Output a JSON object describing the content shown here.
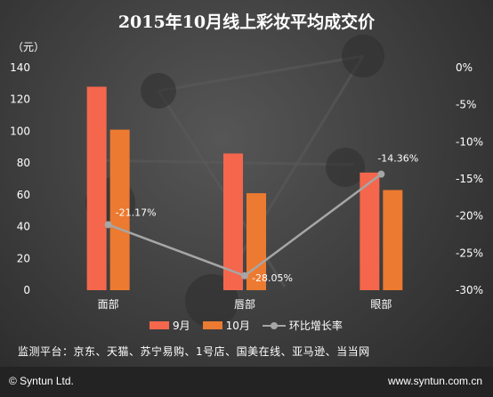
{
  "chart_data": {
    "type": "bar",
    "title": "2015年10月线上彩妆平均成交价",
    "y_unit_label": "（元）",
    "categories": [
      "面部",
      "唇部",
      "眼部"
    ],
    "series": [
      {
        "name": "9月",
        "type": "bar",
        "axis": "left",
        "color": "#f4674d",
        "values": [
          128,
          86,
          74
        ]
      },
      {
        "name": "10月",
        "type": "bar",
        "axis": "left",
        "color": "#ec7a30",
        "values": [
          101,
          61,
          63
        ]
      },
      {
        "name": "环比增长率",
        "type": "line",
        "axis": "right",
        "color": "#a6a6a6",
        "values": [
          -21.17,
          -28.05,
          -14.36
        ]
      }
    ],
    "line_labels": [
      "-21.17%",
      "-28.05%",
      "-14.36%"
    ],
    "ylim": [
      0,
      140
    ],
    "y_ticks": [
      "0",
      "20",
      "40",
      "60",
      "80",
      "100",
      "120",
      "140"
    ],
    "y2lim": [
      -30,
      0
    ],
    "y2_ticks": [
      "0%",
      "-5%",
      "-10%",
      "-15%",
      "-20%",
      "-25%",
      "-30%"
    ],
    "grid": false,
    "legend_position": "bottom"
  },
  "monitor_text": "监测平台：京东、天猫、苏宁易购、1号店、国美在线、亚马逊、当当网",
  "footer": {
    "brand": "© Syntun Ltd.",
    "site": "www.syntun.com.cn"
  }
}
